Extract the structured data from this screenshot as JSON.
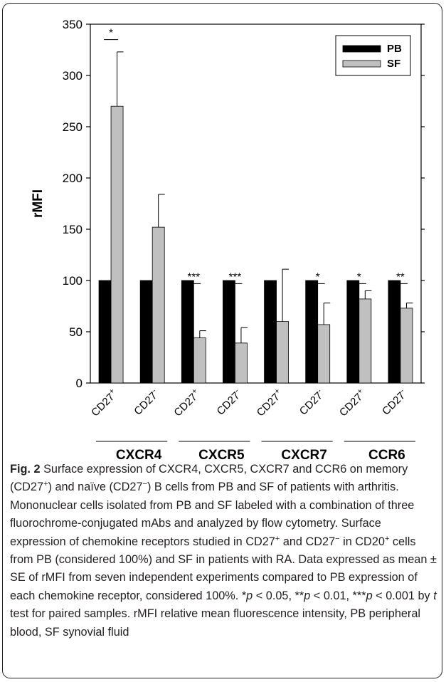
{
  "chart_data": {
    "type": "bar",
    "title": "",
    "xlabel": "",
    "ylabel": "rMFI",
    "ylim": [
      0,
      350
    ],
    "yticks": [
      0,
      50,
      100,
      150,
      200,
      250,
      300,
      350
    ],
    "grid": false,
    "legend_position": "top-right",
    "categories": [
      "CD27+",
      "CD27-",
      "CD27+",
      "CD27-",
      "CD27+",
      "CD27-",
      "CD27+",
      "CD27-"
    ],
    "groups": [
      {
        "label": "CXCR4",
        "categories": [
          0,
          1
        ]
      },
      {
        "label": "CXCR5",
        "categories": [
          2,
          3
        ]
      },
      {
        "label": "CXCR7",
        "categories": [
          4,
          5
        ]
      },
      {
        "label": "CCR6",
        "categories": [
          6,
          7
        ]
      }
    ],
    "series": [
      {
        "name": "PB",
        "color": "#000000",
        "values": [
          100,
          100,
          100,
          100,
          100,
          100,
          100,
          100
        ],
        "errors": [
          0,
          0,
          0,
          0,
          0,
          0,
          0,
          0
        ]
      },
      {
        "name": "SF",
        "color": "#c0c0c0",
        "values": [
          270,
          152,
          44,
          39,
          60,
          57,
          82,
          73
        ],
        "errors": [
          53,
          32,
          7,
          15,
          51,
          21,
          8,
          5
        ]
      }
    ],
    "significance": [
      {
        "category": 0,
        "label": "*",
        "y": 335
      },
      {
        "category": 2,
        "label": "***",
        "y": 97
      },
      {
        "category": 3,
        "label": "***",
        "y": 97
      },
      {
        "category": 5,
        "label": "*",
        "y": 97
      },
      {
        "category": 6,
        "label": "*",
        "y": 97
      },
      {
        "category": 7,
        "label": "**",
        "y": 97
      }
    ]
  },
  "caption": {
    "fig_label": "Fig. 2",
    "text_html": "Surface expression of CXCR4, CXCR5, CXCR7 and CCR6 on memory (CD27<sup>+</sup>) and naïve (CD27<sup>−</sup>) B cells from PB and SF of patients with arthritis. Mononuclear cells isolated from PB and SF labeled with a combination of three fluorochrome-conjugated mAbs and analyzed by flow cytometry. Surface expression of chemokine receptors studied in CD27<sup>+</sup> and CD27<sup>−</sup> in CD20<sup>+</sup> cells from PB (considered 100%) and SF in patients with RA. Data expressed as mean ± SE of rMFI from seven independent experiments compared to PB expression of each chemokine receptor, considered 100%. *<i>p</i> &lt; 0.05, **<i>p</i> &lt; 0.01, ***<i>p</i> &lt; 0.001 by <i>t</i> test for paired samples. rMFI relative mean fluorescence intensity, PB peripheral blood, SF synovial fluid"
  }
}
